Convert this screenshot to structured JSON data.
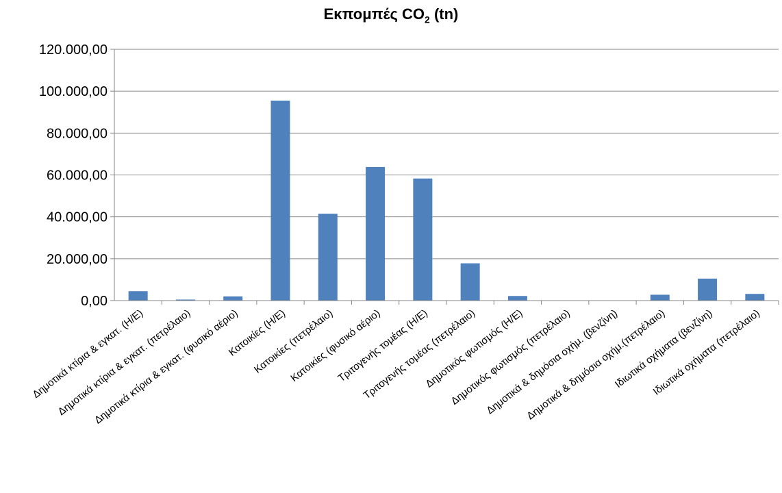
{
  "chart_data": {
    "type": "bar",
    "title": "Εκπομπές CO",
    "title_sub": "2",
    "title_suffix": " (tn)",
    "categories": [
      "Δημοτικά κτίρια & εγκατ. (Η/Ε)",
      "Δημοτικά κτίρια & εγκατ. (πετρέλαιο)",
      "Δημοτικά κτίρια & εγκατ. (φυσικό αέριο)",
      "Κατοικίες (Η/Ε)",
      "Κατοικίες (πετρέλαιο)",
      "Κατοικίες (φυσικό αέριο)",
      "Τριτογενής τομέας (Η/Ε)",
      "Τριτογενής τομέας (πετρέλαιο)",
      "Δημοτικός φωτισμός (Η/Ε)",
      "Δημοτικός φωτισμός (πετρέλαιο)",
      "Δημοτικά & δημόσια οχήμ. (βενζίνη)",
      "Δημοτικά & δημόσια οχήμ.(πετρέλαιο)",
      "Ιδιωτικά οχήματα (βενζίνη)",
      "Ιδιωτικά οχήματα (πετρέλαιο)"
    ],
    "values": [
      4500,
      500,
      2000,
      95500,
      41500,
      63800,
      58300,
      17800,
      2200,
      0,
      0,
      2800,
      10500,
      3200
    ],
    "ylim": [
      0,
      120000
    ],
    "yticks": [
      "0,00",
      "20.000,00",
      "40.000,00",
      "60.000,00",
      "80.000,00",
      "100.000,00",
      "120.000,00"
    ],
    "ytick_values": [
      0,
      20000,
      40000,
      60000,
      80000,
      100000,
      120000
    ],
    "grid": true,
    "bar_color": "#4f81bd",
    "grid_color": "#868686"
  }
}
